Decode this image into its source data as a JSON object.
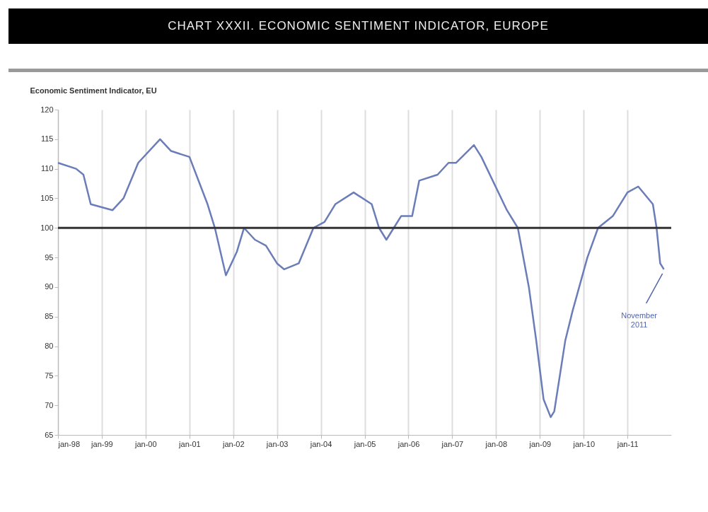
{
  "chart_data": {
    "type": "line",
    "title": "CHART XXXII. ECONOMIC SENTIMENT INDICATOR, EUROPE",
    "ylabel": "Economic Sentiment Indicator, EU",
    "x": [
      "1998-01",
      "1998-06",
      "1998-08",
      "1998-10",
      "1999-04",
      "1999-07",
      "1999-11",
      "2000-05",
      "2000-08",
      "2001-01",
      "2001-06",
      "2001-08",
      "2001-11",
      "2002-02",
      "2002-04",
      "2002-07",
      "2002-10",
      "2003-01",
      "2003-03",
      "2003-07",
      "2003-11",
      "2004-02",
      "2004-05",
      "2004-10",
      "2005-03",
      "2005-05",
      "2005-07",
      "2005-09",
      "2005-11",
      "2006-02",
      "2006-04",
      "2006-09",
      "2006-12",
      "2007-02",
      "2007-07",
      "2007-09",
      "2008-04",
      "2008-07",
      "2008-10",
      "2008-12",
      "2009-02",
      "2009-04",
      "2009-05",
      "2009-08",
      "2009-10",
      "2010-02",
      "2010-05",
      "2010-09",
      "2011-01",
      "2011-04",
      "2011-08",
      "2011-09",
      "2011-10",
      "2011-11"
    ],
    "series": [
      {
        "color": "#6b7db8",
        "values": [
          111,
          110,
          109,
          104,
          103,
          105,
          111,
          115,
          113,
          112,
          104,
          100,
          92,
          96,
          100,
          98,
          97,
          94,
          93,
          94,
          100,
          101,
          104,
          106,
          104,
          100,
          98,
          100,
          102,
          102,
          108,
          109,
          111,
          111,
          114,
          112,
          103,
          100,
          90,
          81,
          71,
          68,
          69,
          81,
          86,
          95,
          100,
          102,
          106,
          107,
          104,
          100,
          94,
          93
        ]
      }
    ],
    "xlim": [
      "1998-01",
      "2012-01"
    ],
    "xticks": [
      {
        "value": "1998-01",
        "label": "jan-98"
      },
      {
        "value": "1999-01",
        "label": "jan-99"
      },
      {
        "value": "2000-01",
        "label": "jan-00"
      },
      {
        "value": "2001-01",
        "label": "jan-01"
      },
      {
        "value": "2002-01",
        "label": "jan-02"
      },
      {
        "value": "2003-01",
        "label": "jan-03"
      },
      {
        "value": "2004-01",
        "label": "jan-04"
      },
      {
        "value": "2005-01",
        "label": "jan-05"
      },
      {
        "value": "2006-01",
        "label": "jan-06"
      },
      {
        "value": "2007-01",
        "label": "jan-07"
      },
      {
        "value": "2008-01",
        "label": "jan-08"
      },
      {
        "value": "2009-01",
        "label": "jan-09"
      },
      {
        "value": "2010-01",
        "label": "jan-10"
      },
      {
        "value": "2011-01",
        "label": "jan-11"
      }
    ],
    "ylim": [
      65,
      120
    ],
    "yticks": [
      65,
      70,
      75,
      80,
      85,
      90,
      95,
      100,
      105,
      110,
      115,
      120
    ],
    "grid": "x",
    "ref_lines": [
      {
        "axis": "y",
        "value": 100,
        "color": "#333333"
      }
    ],
    "annotations": [
      {
        "text": "November 2011",
        "x": "2011-11",
        "y": 93
      }
    ],
    "marker": "none",
    "line_style": "solid"
  }
}
